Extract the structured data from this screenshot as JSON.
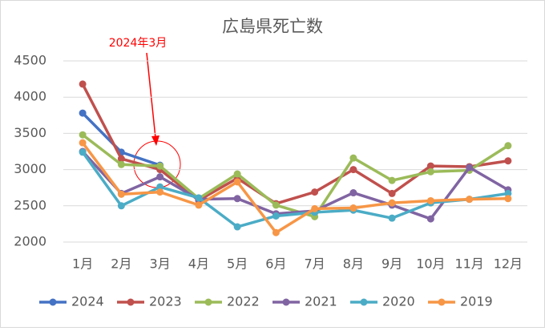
{
  "chart_data": {
    "type": "line",
    "title": "広島県死亡数",
    "annotation": "2024年3月",
    "categories": [
      "1月",
      "2月",
      "3月",
      "4月",
      "5月",
      "6月",
      "7月",
      "8月",
      "9月",
      "10月",
      "11月",
      "12月"
    ],
    "ylim": [
      2000,
      4500
    ],
    "yticks": [
      2000,
      2500,
      3000,
      3500,
      4000,
      4500
    ],
    "grid": true,
    "legend": "bottom",
    "series": [
      {
        "name": "2024",
        "color": "#4472c4",
        "values": [
          3780,
          3240,
          3060,
          null,
          null,
          null,
          null,
          null,
          null,
          null,
          null,
          null
        ]
      },
      {
        "name": "2023",
        "color": "#c0504d",
        "values": [
          4180,
          3150,
          3000,
          2575,
          2880,
          2530,
          2690,
          3000,
          2670,
          3050,
          3040,
          3120
        ]
      },
      {
        "name": "2022",
        "color": "#9bbb59",
        "values": [
          3480,
          3070,
          3050,
          2600,
          2940,
          2510,
          2350,
          3160,
          2850,
          2970,
          2990,
          3330
        ]
      },
      {
        "name": "2021",
        "color": "#8064a2",
        "values": [
          3250,
          2670,
          2900,
          2590,
          2600,
          2390,
          2430,
          2680,
          2510,
          2320,
          3030,
          2720
        ]
      },
      {
        "name": "2020",
        "color": "#4bacc6",
        "values": [
          3240,
          2500,
          2760,
          2610,
          2210,
          2360,
          2410,
          2440,
          2330,
          2540,
          2590,
          2670
        ]
      },
      {
        "name": "2019",
        "color": "#f79646",
        "values": [
          3370,
          2660,
          2690,
          2510,
          2830,
          2130,
          2460,
          2470,
          2540,
          2570,
          2590,
          2600
        ]
      }
    ]
  }
}
